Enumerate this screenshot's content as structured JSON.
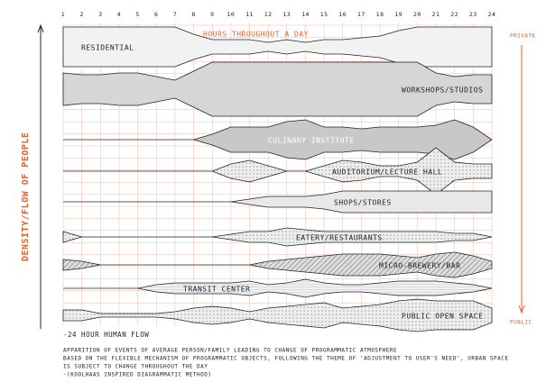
{
  "header": {
    "title": "HOURS THROUGHOUT A DAY",
    "hours": [
      1,
      2,
      3,
      4,
      5,
      6,
      7,
      8,
      9,
      10,
      11,
      12,
      13,
      14,
      15,
      16,
      17,
      18,
      19,
      20,
      21,
      22,
      23,
      24
    ]
  },
  "axes": {
    "left": "DENSITY/FLOW OF PEOPLE",
    "top_right": "PRIVATE",
    "bottom_right": "PUBLIC"
  },
  "programs": [
    {
      "label": "RESIDENTIAL",
      "density": [
        22,
        22,
        22,
        22,
        22,
        22,
        22,
        14,
        8,
        8,
        8,
        5,
        8,
        5,
        8,
        8,
        10,
        12,
        18,
        22,
        22,
        22,
        22,
        22
      ]
    },
    {
      "label": "WORKSHOPS/STUDIOS",
      "density": [
        18,
        16,
        16,
        18,
        18,
        14,
        10,
        20,
        30,
        30,
        30,
        30,
        30,
        30,
        30,
        30,
        30,
        30,
        30,
        30,
        18,
        14,
        16,
        16
      ]
    },
    {
      "label": "CULINARY INSTITUTE",
      "density": [
        0,
        0,
        0,
        0,
        0,
        0,
        0,
        0,
        6,
        14,
        14,
        14,
        20,
        22,
        14,
        14,
        12,
        14,
        14,
        14,
        16,
        22,
        14,
        0
      ]
    },
    {
      "label": "AUDITORIUM/LECTURE HALL",
      "density": [
        0,
        0,
        0,
        0,
        0,
        0,
        0,
        0,
        0,
        8,
        12,
        6,
        0,
        0,
        6,
        12,
        10,
        6,
        6,
        10,
        26,
        10,
        8,
        8
      ]
    },
    {
      "label": "SHOPS/STORES",
      "density": [
        0,
        0,
        0,
        0,
        0,
        0,
        0,
        0,
        0,
        0,
        3,
        6,
        6,
        6,
        8,
        12,
        12,
        12,
        12,
        12,
        12,
        12,
        12,
        12
      ]
    },
    {
      "label": "EATERY/RESTAURANTS",
      "density": [
        6,
        0,
        0,
        0,
        0,
        0,
        0,
        0,
        0,
        3,
        6,
        6,
        10,
        8,
        6,
        6,
        6,
        6,
        6,
        6,
        6,
        4,
        4,
        0
      ]
    },
    {
      "label": "MICRO-BREWERY/BAR",
      "density": [
        6,
        4,
        0,
        0,
        0,
        0,
        0,
        0,
        0,
        0,
        0,
        4,
        6,
        8,
        10,
        12,
        12,
        12,
        10,
        8,
        12,
        14,
        10,
        4
      ]
    },
    {
      "label": "TRANSIT CENTER",
      "density": [
        0,
        0,
        0,
        0,
        0,
        4,
        6,
        6,
        6,
        6,
        8,
        4,
        6,
        10,
        6,
        4,
        4,
        6,
        8,
        8,
        8,
        6,
        4,
        0
      ]
    },
    {
      "label": "PUBLIC OPEN SPACE",
      "density": [
        6,
        6,
        2,
        2,
        2,
        2,
        4,
        8,
        10,
        8,
        4,
        8,
        10,
        12,
        14,
        8,
        10,
        12,
        16,
        18,
        16,
        16,
        16,
        8
      ]
    }
  ],
  "footer": {
    "subtitle": "-24 HOUR HUMAN FLOW",
    "caption": [
      "APPARITION OF EVENTS OF AVERAGE PERSON/FAMILY LEADING TO CHANGE OF PROGRAMMATIC ATMOSPHERE",
      "BASED ON THE FLEXIBLE MECHANISM OF PROGRAMMATIC OBJECTS, FOLLOWING THE THEME OF 'ADJUSTMENT TO USER'S NEED', URBAN SPACE",
      "IS SUBJECT TO CHANGE THROUGHOUT THE DAY",
      "-(KOOLHAAS INSPIRED DIAGRAMMATIC METHOD)"
    ]
  }
}
